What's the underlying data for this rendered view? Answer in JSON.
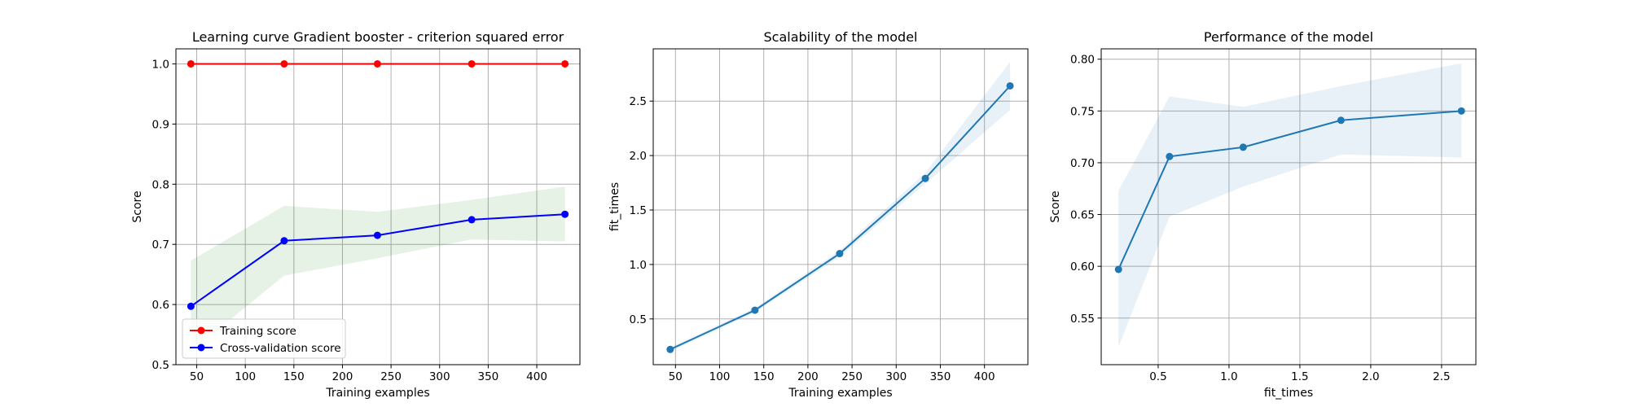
{
  "chart_data": [
    {
      "type": "line",
      "title": "Learning curve Gradient booster - criterion squared error",
      "xlabel": "Training examples",
      "ylabel": "Score",
      "xlim": [
        28.6,
        444.4
      ],
      "ylim": [
        0.5,
        1.025
      ],
      "xticks": [
        50,
        100,
        150,
        200,
        250,
        300,
        350,
        400
      ],
      "yticks": [
        0.5,
        0.6,
        0.7,
        0.8,
        0.9,
        1.0
      ],
      "xtick_labels": [
        "50",
        "100",
        "150",
        "200",
        "250",
        "300",
        "350",
        "400"
      ],
      "ytick_labels": [
        "0.5",
        "0.6",
        "0.7",
        "0.8",
        "0.9",
        "1.0"
      ],
      "grid": true,
      "legend": "lower-left",
      "x": [
        44,
        140,
        236,
        333,
        429
      ],
      "series": [
        {
          "name": "Training score",
          "color": "#ff0000",
          "values": [
            1.0,
            1.0,
            1.0,
            1.0,
            1.0
          ],
          "band_low": [
            1.0,
            1.0,
            1.0,
            1.0,
            1.0
          ],
          "band_high": [
            1.0,
            1.0,
            1.0,
            1.0,
            1.0
          ],
          "band_color": "#ff0000"
        },
        {
          "name": "Cross-validation score",
          "color": "#0000ff",
          "values": [
            0.597,
            0.706,
            0.715,
            0.741,
            0.75
          ],
          "band_low": [
            0.522,
            0.648,
            0.677,
            0.708,
            0.705
          ],
          "band_high": [
            0.673,
            0.764,
            0.754,
            0.774,
            0.796
          ],
          "band_color": "#008000"
        }
      ]
    },
    {
      "type": "line",
      "title": "Scalability of the model",
      "xlabel": "Training examples",
      "ylabel": "fit_times",
      "xlim": [
        24.8,
        449.2
      ],
      "ylim": [
        0.08,
        2.98
      ],
      "xticks": [
        50,
        100,
        150,
        200,
        250,
        300,
        350,
        400
      ],
      "yticks": [
        0.5,
        1.0,
        1.5,
        2.0,
        2.5
      ],
      "xtick_labels": [
        "50",
        "100",
        "150",
        "200",
        "250",
        "300",
        "350",
        "400"
      ],
      "ytick_labels": [
        "0.5",
        "1.0",
        "1.5",
        "2.0",
        "2.5"
      ],
      "grid": true,
      "x": [
        44,
        140,
        236,
        333,
        429
      ],
      "series": [
        {
          "color": "#1f77b4",
          "values": [
            0.22,
            0.58,
            1.1,
            1.79,
            2.64
          ],
          "band_low": [
            0.2,
            0.56,
            1.07,
            1.74,
            2.42
          ],
          "band_high": [
            0.24,
            0.6,
            1.13,
            1.84,
            2.86
          ],
          "band_color": "#1f77b4"
        }
      ]
    },
    {
      "type": "line",
      "title": "Performance of the model",
      "xlabel": "fit_times",
      "ylabel": "Score",
      "xlim": [
        0.098,
        2.742
      ],
      "ylim": [
        0.505,
        0.81
      ],
      "xticks": [
        0.5,
        1.0,
        1.5,
        2.0,
        2.5
      ],
      "yticks": [
        0.55,
        0.6,
        0.65,
        0.7,
        0.75,
        0.8
      ],
      "xtick_labels": [
        "0.5",
        "1.0",
        "1.5",
        "2.0",
        "2.5"
      ],
      "ytick_labels": [
        "0.55",
        "0.60",
        "0.65",
        "0.70",
        "0.75",
        "0.80"
      ],
      "grid": true,
      "x": [
        0.22,
        0.58,
        1.1,
        1.79,
        2.64
      ],
      "series": [
        {
          "color": "#1f77b4",
          "values": [
            0.597,
            0.706,
            0.715,
            0.741,
            0.75
          ],
          "band_low": [
            0.522,
            0.648,
            0.677,
            0.708,
            0.705
          ],
          "band_high": [
            0.673,
            0.764,
            0.754,
            0.774,
            0.796
          ],
          "band_color": "#1f77b4"
        }
      ]
    }
  ]
}
